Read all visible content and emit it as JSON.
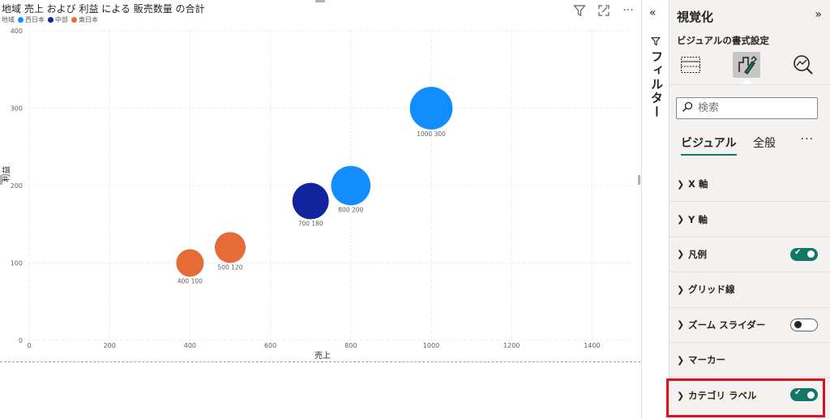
{
  "chart_header": {
    "title": "地域 売上 および 利益 による 販売数量 の合計",
    "legend_title": "地域",
    "legend": [
      {
        "name": "西日本",
        "color": "#118dff"
      },
      {
        "name": "中部",
        "color": "#12239e"
      },
      {
        "name": "東日本",
        "color": "#e66c37"
      }
    ]
  },
  "toolbar": {
    "filter_icon": "funnel-icon",
    "focus_icon": "focus-mode-icon",
    "more_label": "···"
  },
  "chart_data": {
    "type": "scatter",
    "title": "地域 売上 および 利益 による 販売数量 の合計",
    "xlabel": "売上",
    "ylabel": "利益",
    "xlim": [
      0,
      1500
    ],
    "ylim": [
      0,
      400
    ],
    "x_ticks": [
      0,
      200,
      400,
      600,
      800,
      1000,
      1200,
      1400
    ],
    "y_ticks": [
      0,
      100,
      200,
      300,
      400
    ],
    "grid": true,
    "legend_position": "top-left",
    "points": [
      {
        "series": "東日本",
        "x": 400,
        "y": 100,
        "label": "400 100",
        "size": 1
      },
      {
        "series": "東日本",
        "x": 500,
        "y": 120,
        "label": "500 120",
        "size": 1.12
      },
      {
        "series": "中部",
        "x": 700,
        "y": 180,
        "label": "700 180",
        "size": 1.32
      },
      {
        "series": "西日本",
        "x": 800,
        "y": 200,
        "label": "800 200",
        "size": 1.43
      },
      {
        "series": "西日本",
        "x": 1000,
        "y": 300,
        "label": "1000 300",
        "size": 1.55
      }
    ]
  },
  "filter_pane": {
    "collapse_label": "«",
    "label": "フィルター"
  },
  "viz_pane": {
    "title": "視覚化",
    "expand_label": "»",
    "subtitle": "ビジュアルの書式設定",
    "search_placeholder": "検索",
    "tabs": {
      "visual": "ビジュアル",
      "general": "全般",
      "more": "···"
    },
    "sections": [
      {
        "label": "X 軸"
      },
      {
        "label": "Y 軸"
      },
      {
        "label": "凡例",
        "toggle": "on"
      },
      {
        "label": "グリッド線"
      },
      {
        "label": "ズーム スライダー",
        "toggle": "off"
      },
      {
        "label": "マーカー"
      },
      {
        "label": "カテゴリ ラベル",
        "toggle": "on"
      }
    ],
    "accent_color": "#117865",
    "highlight_color": "#e0111f"
  }
}
